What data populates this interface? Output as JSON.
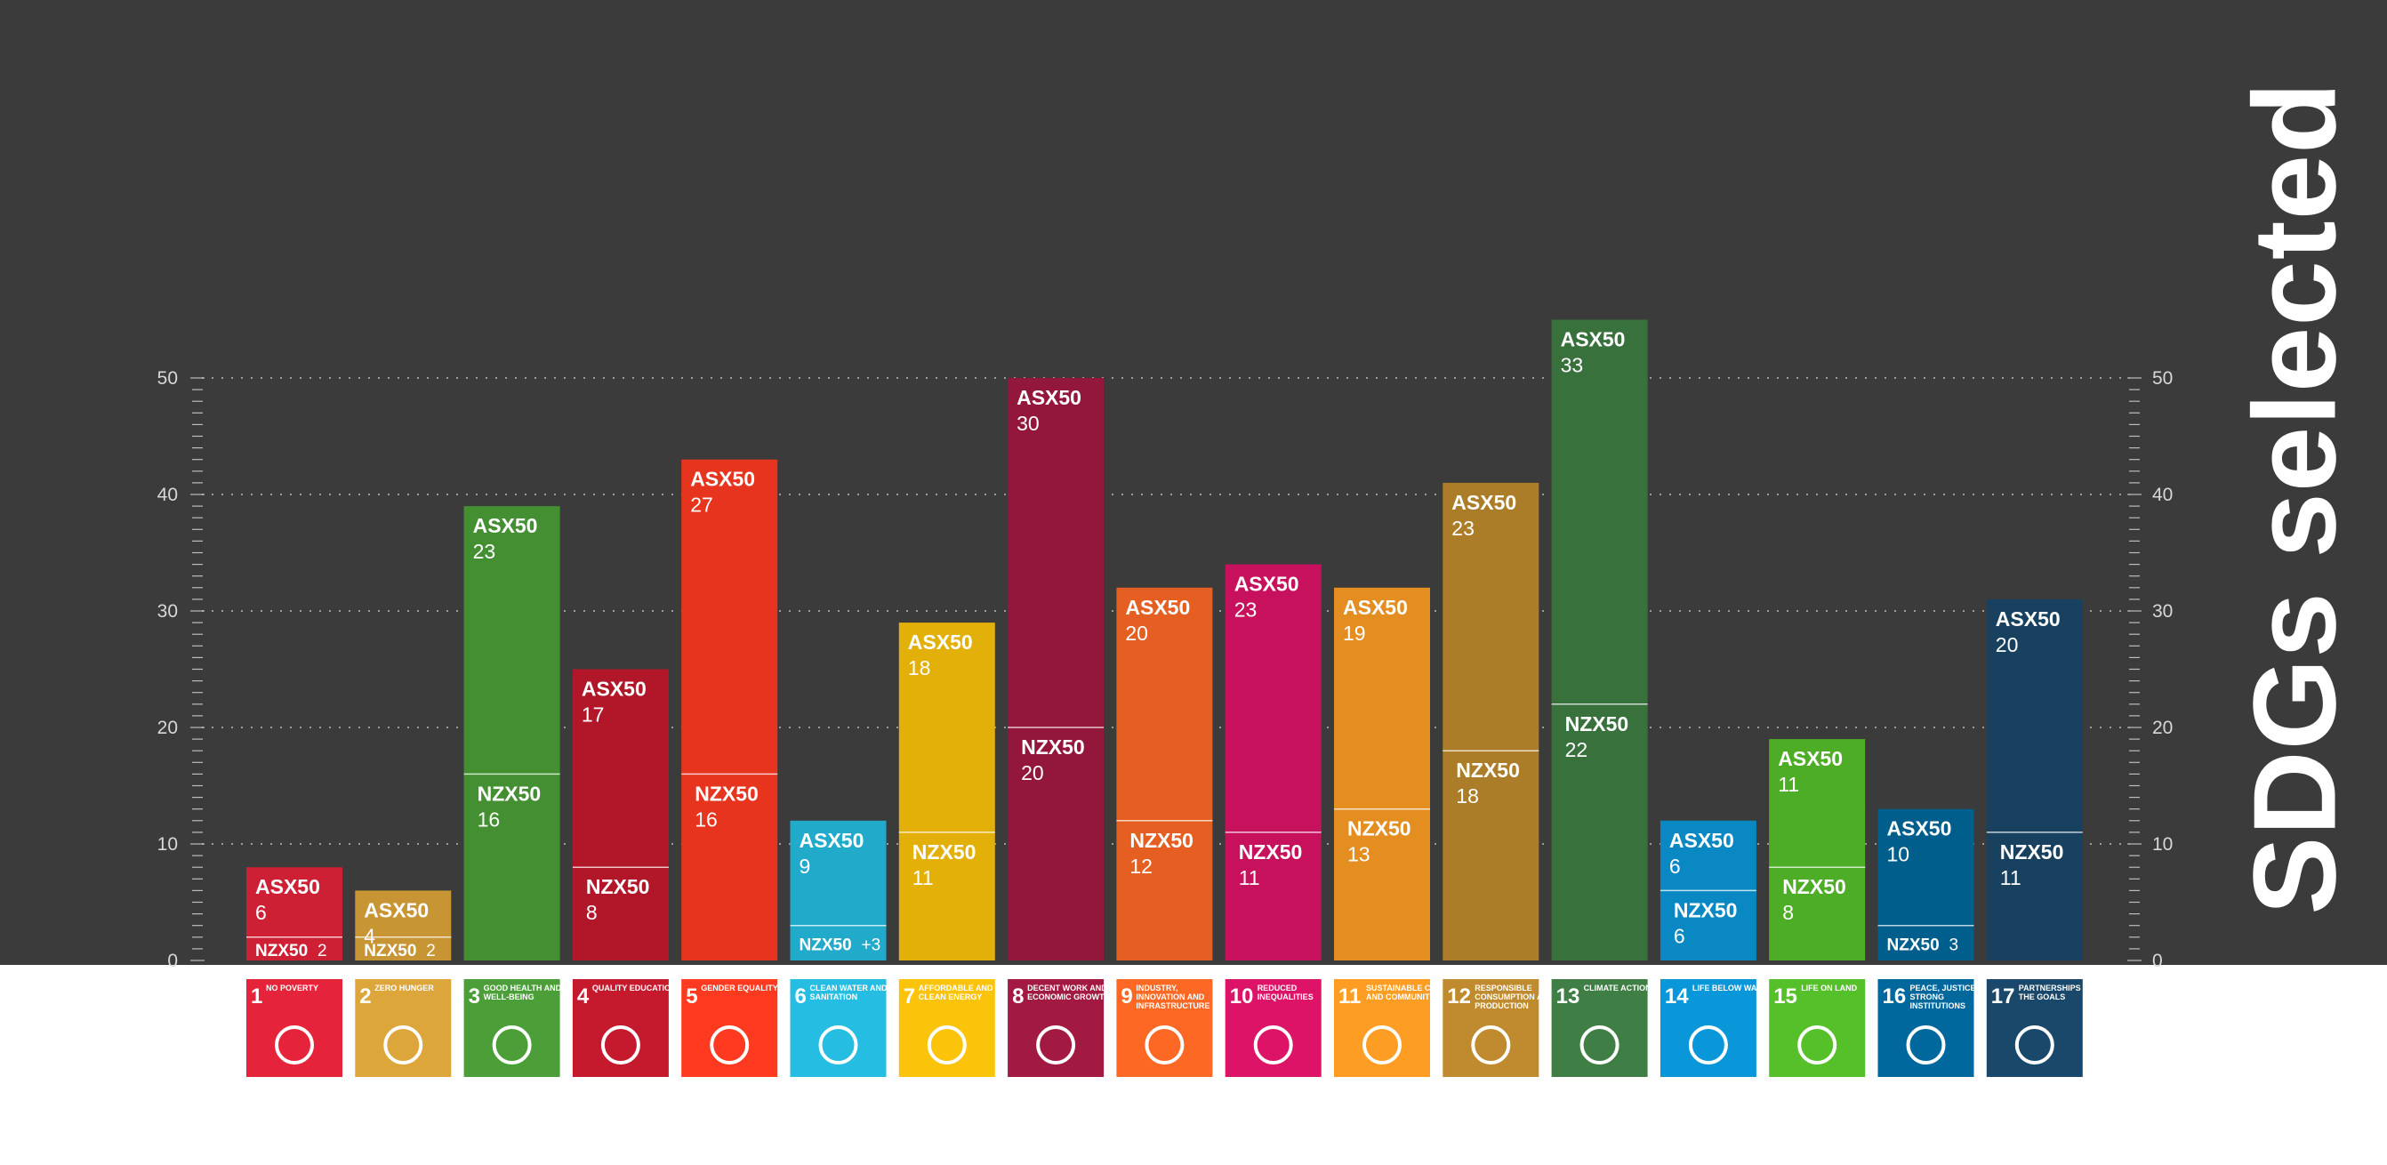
{
  "chart_data": {
    "type": "bar",
    "title": "SDGs selected",
    "stacked": true,
    "ylim": [
      0,
      50
    ],
    "y_ticks": [
      0,
      10,
      20,
      30,
      40,
      50
    ],
    "grid": true,
    "series_names": {
      "asx": "ASX50",
      "nzx": "NZX50"
    },
    "bars": [
      {
        "goal": 1,
        "label": "NO POVERTY",
        "color": "#e5243b",
        "asx": 6,
        "nzx": 2,
        "nzx_display": "2"
      },
      {
        "goal": 2,
        "label": "ZERO HUNGER",
        "color": "#dda63a",
        "asx": 4,
        "nzx": 2,
        "nzx_display": "2"
      },
      {
        "goal": 3,
        "label": "GOOD HEALTH AND WELL-BEING",
        "color": "#4c9f38",
        "asx": 23,
        "nzx": 16,
        "nzx_display": "16"
      },
      {
        "goal": 4,
        "label": "QUALITY EDUCATION",
        "color": "#c5192d",
        "asx": 17,
        "nzx": 8,
        "nzx_display": "8"
      },
      {
        "goal": 5,
        "label": "GENDER EQUALITY",
        "color": "#ff3a21",
        "asx": 27,
        "nzx": 16,
        "nzx_display": "16"
      },
      {
        "goal": 6,
        "label": "CLEAN WATER AND SANITATION",
        "color": "#26bde2",
        "asx": 9,
        "nzx": 3,
        "nzx_display": "+3"
      },
      {
        "goal": 7,
        "label": "AFFORDABLE AND CLEAN ENERGY",
        "color": "#fcc30b",
        "asx": 18,
        "nzx": 11,
        "nzx_display": "11"
      },
      {
        "goal": 8,
        "label": "DECENT WORK AND ECONOMIC GROWTH",
        "color": "#a21942",
        "asx": 30,
        "nzx": 20,
        "nzx_display": "20"
      },
      {
        "goal": 9,
        "label": "INDUSTRY, INNOVATION AND INFRASTRUCTURE",
        "color": "#fd6925",
        "asx": 20,
        "nzx": 12,
        "nzx_display": "12"
      },
      {
        "goal": 10,
        "label": "REDUCED INEQUALITIES",
        "color": "#dd1367",
        "asx": 23,
        "nzx": 11,
        "nzx_display": "11"
      },
      {
        "goal": 11,
        "label": "SUSTAINABLE CITIES AND COMMUNITIES",
        "color": "#fd9d24",
        "asx": 19,
        "nzx": 13,
        "nzx_display": "13"
      },
      {
        "goal": 12,
        "label": "RESPONSIBLE CONSUMPTION AND PRODUCTION",
        "color": "#bf8b2e",
        "asx": 23,
        "nzx": 18,
        "nzx_display": "18"
      },
      {
        "goal": 13,
        "label": "CLIMATE ACTION",
        "color": "#3f7e44",
        "asx": 33,
        "nzx": 22,
        "nzx_display": "22"
      },
      {
        "goal": 14,
        "label": "LIFE BELOW WATER",
        "color": "#0a97d9",
        "asx": 6,
        "nzx": 6,
        "nzx_display": "6"
      },
      {
        "goal": 15,
        "label": "LIFE ON LAND",
        "color": "#56c02b",
        "asx": 11,
        "nzx": 8,
        "nzx_display": "8"
      },
      {
        "goal": 16,
        "label": "PEACE, JUSTICE AND STRONG INSTITUTIONS",
        "color": "#00689d",
        "asx": 10,
        "nzx": 3,
        "nzx_display": "3"
      },
      {
        "goal": 17,
        "label": "PARTNERSHIPS FOR THE GOALS",
        "color": "#19486a",
        "asx": 20,
        "nzx": 11,
        "nzx_display": "11"
      }
    ]
  }
}
